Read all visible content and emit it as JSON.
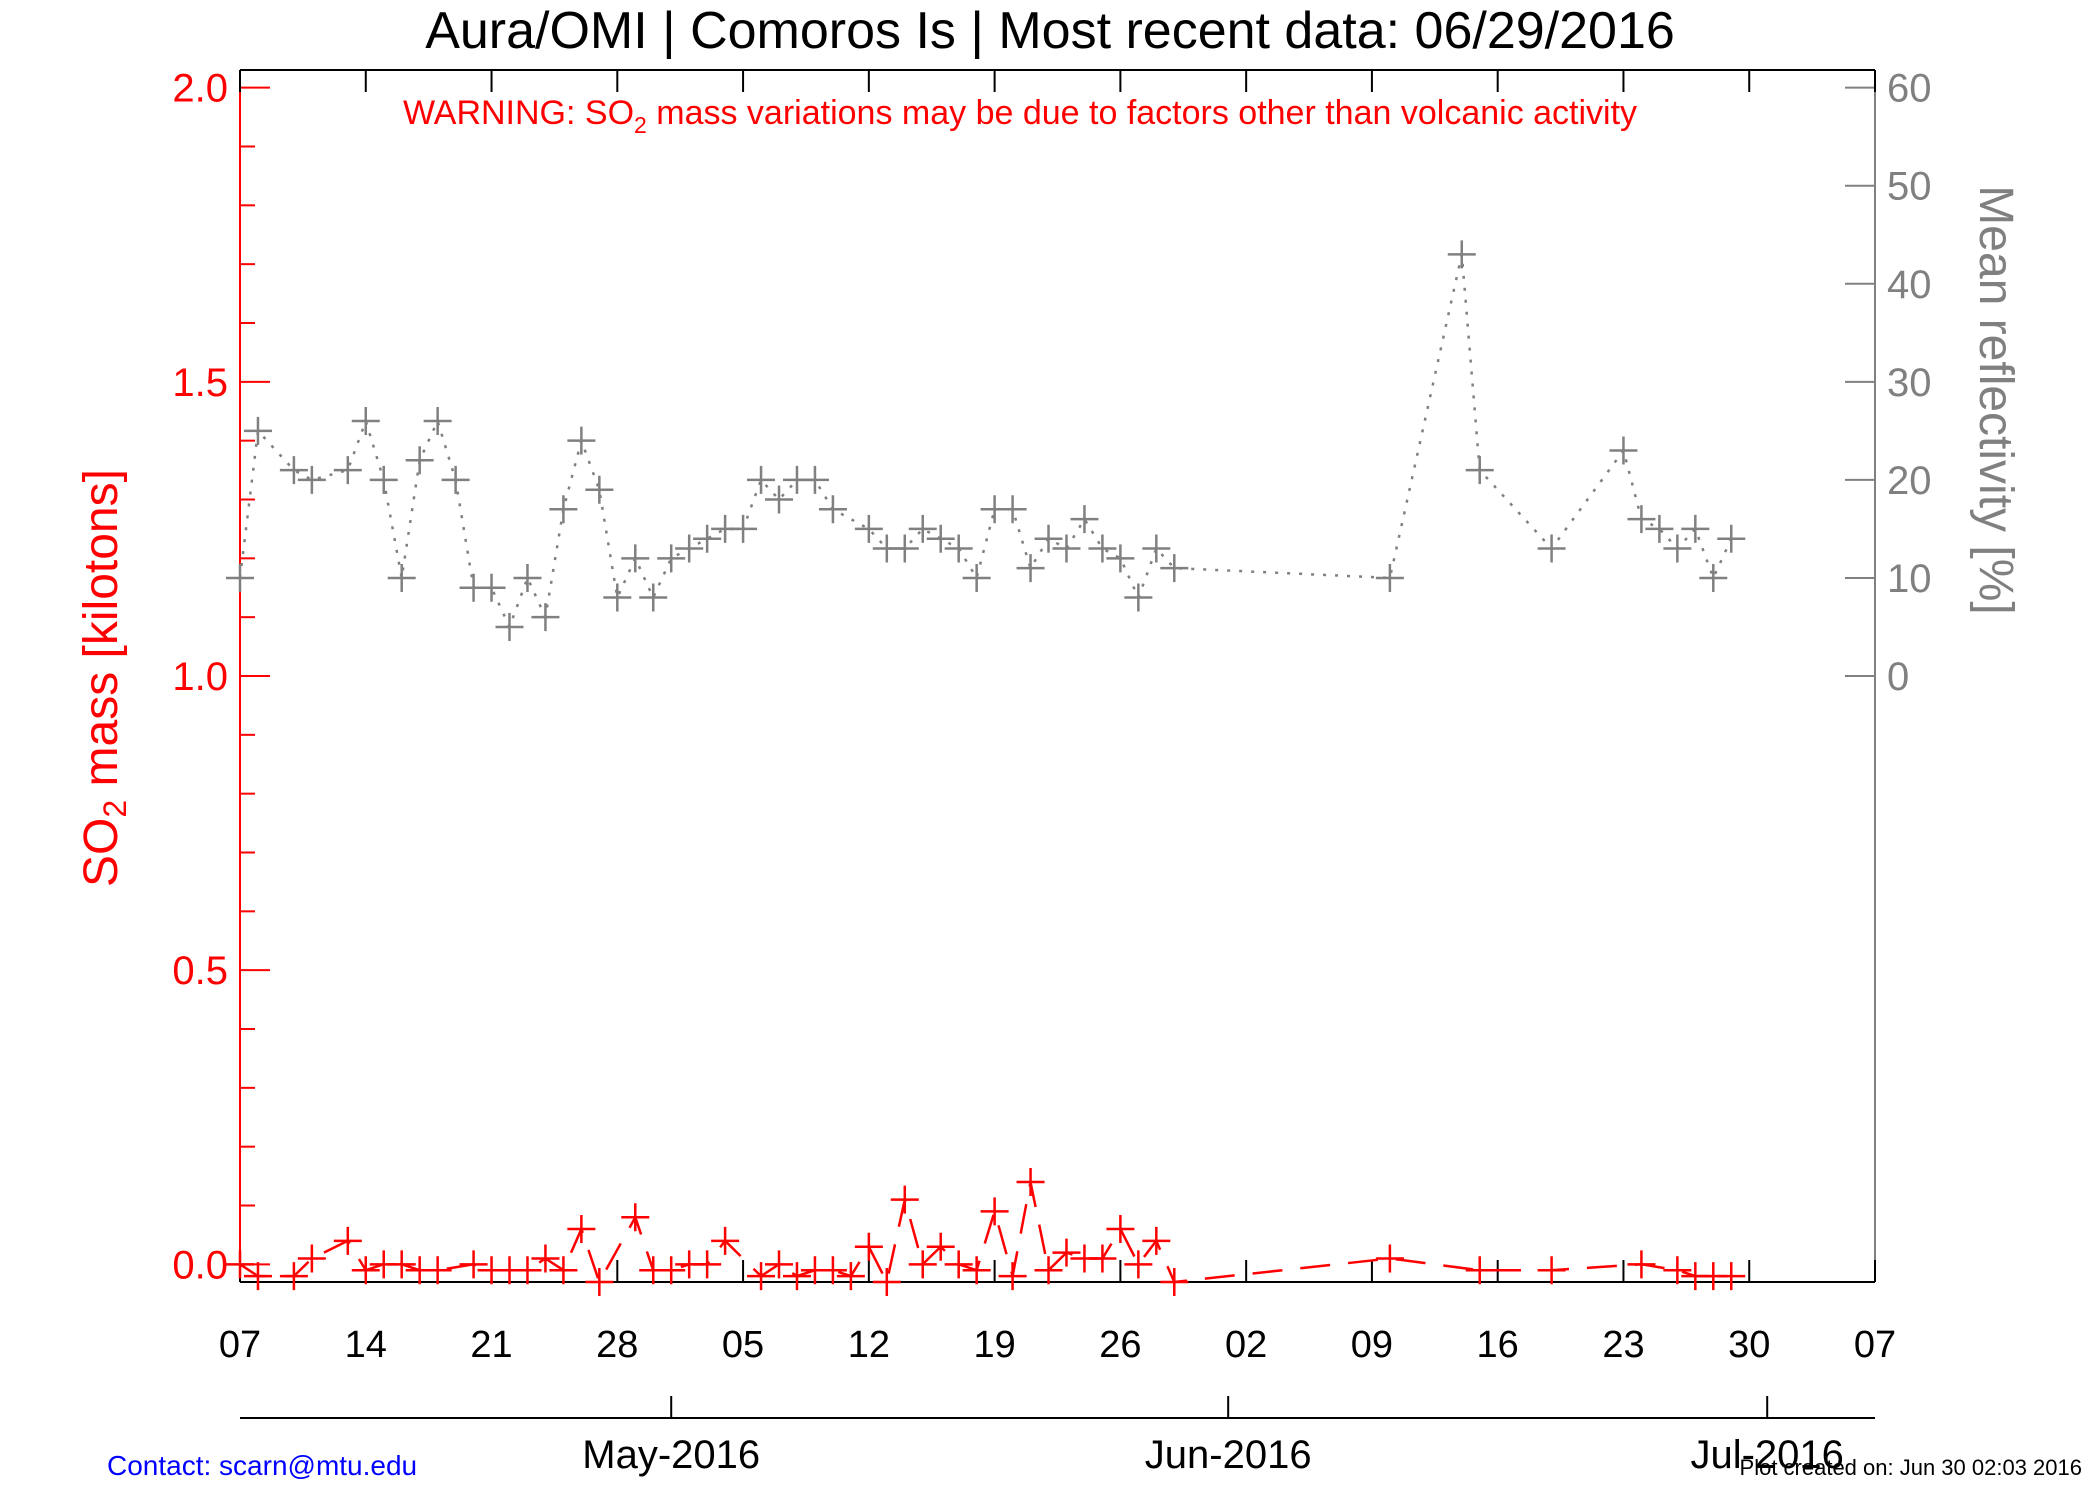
{
  "header": {
    "title": "Aura/OMI | Comoros Is | Most recent data: 06/29/2016",
    "warning_pre": "WARNING: SO",
    "warning_sub": "2",
    "warning_post": " mass variations may be due to factors other than volcanic activity"
  },
  "footer": {
    "contact": "Contact: scarn@mtu.edu",
    "created": "Plot created on: Jun 30 02:03 2016"
  },
  "chart_data": {
    "type": "line",
    "title": "Aura/OMI | Comoros Is | Most recent data: 06/29/2016",
    "x_unit": "date",
    "x_range": [
      "2016-04-07",
      "2016-07-07"
    ],
    "x_ticks": [
      "07",
      "14",
      "21",
      "28",
      "05",
      "12",
      "19",
      "26",
      "02",
      "09",
      "16",
      "23",
      "30",
      "07"
    ],
    "month_labels": [
      {
        "label": "May-2016",
        "date": "2016-05-01"
      },
      {
        "label": "Jun-2016",
        "date": "2016-06-01"
      },
      {
        "label": "Jul-2016",
        "date": "2016-07-01"
      }
    ],
    "ylabel_left": {
      "pre": "SO",
      "sub": "2",
      "post": " mass [kilotons]"
    },
    "ylabel_right": "Mean reflectivity [%]",
    "ylim_left": [
      -0.03,
      2.03
    ],
    "yticks_left": [
      "0.0",
      "0.5",
      "1.0",
      "1.5",
      "2.0"
    ],
    "yticks_right": [
      "0",
      "10",
      "20",
      "30",
      "40",
      "50",
      "60"
    ],
    "right_axis_mapping": {
      "zero_at_left_value": 1.0,
      "sixty_at_left_value": 2.0
    },
    "colors": {
      "so2": "#ff0000",
      "reflectivity": "#808080"
    },
    "series": [
      {
        "key": "so2_mass",
        "axis": "left",
        "style": "dashed",
        "x": [
          "2016-04-07",
          "2016-04-08",
          "2016-04-10",
          "2016-04-11",
          "2016-04-13",
          "2016-04-14",
          "2016-04-15",
          "2016-04-16",
          "2016-04-17",
          "2016-04-18",
          "2016-04-20",
          "2016-04-21",
          "2016-04-22",
          "2016-04-23",
          "2016-04-24",
          "2016-04-25",
          "2016-04-26",
          "2016-04-27",
          "2016-04-29",
          "2016-04-30",
          "2016-05-01",
          "2016-05-02",
          "2016-05-03",
          "2016-05-04",
          "2016-05-06",
          "2016-05-07",
          "2016-05-08",
          "2016-05-09",
          "2016-05-10",
          "2016-05-11",
          "2016-05-12",
          "2016-05-13",
          "2016-05-14",
          "2016-05-15",
          "2016-05-16",
          "2016-05-17",
          "2016-05-18",
          "2016-05-19",
          "2016-05-20",
          "2016-05-21",
          "2016-05-22",
          "2016-05-23",
          "2016-05-24",
          "2016-05-25",
          "2016-05-26",
          "2016-05-27",
          "2016-05-28",
          "2016-05-29",
          "2016-06-10",
          "2016-06-15",
          "2016-06-19",
          "2016-06-24",
          "2016-06-26",
          "2016-06-27",
          "2016-06-28",
          "2016-06-29"
        ],
        "values": [
          0.0,
          -0.02,
          -0.02,
          0.01,
          0.04,
          -0.01,
          0.0,
          0.0,
          -0.01,
          -0.01,
          0.0,
          -0.01,
          -0.01,
          -0.01,
          0.01,
          -0.01,
          0.06,
          -0.04,
          0.08,
          -0.01,
          -0.01,
          0.0,
          0.0,
          0.04,
          -0.02,
          0.0,
          -0.02,
          -0.01,
          -0.01,
          -0.02,
          0.03,
          -0.04,
          0.11,
          0.0,
          0.03,
          0.0,
          -0.01,
          0.09,
          -0.02,
          0.14,
          -0.01,
          0.02,
          0.01,
          0.01,
          0.06,
          0.0,
          0.04,
          -0.03,
          0.01,
          -0.01,
          -0.01,
          0.0,
          -0.01,
          -0.02,
          -0.02,
          -0.02
        ]
      },
      {
        "key": "mean_reflectivity",
        "axis": "right",
        "style": "dotted",
        "x": [
          "2016-04-07",
          "2016-04-08",
          "2016-04-10",
          "2016-04-11",
          "2016-04-13",
          "2016-04-14",
          "2016-04-15",
          "2016-04-16",
          "2016-04-17",
          "2016-04-18",
          "2016-04-19",
          "2016-04-20",
          "2016-04-21",
          "2016-04-22",
          "2016-04-23",
          "2016-04-24",
          "2016-04-25",
          "2016-04-26",
          "2016-04-27",
          "2016-04-28",
          "2016-04-29",
          "2016-04-30",
          "2016-05-01",
          "2016-05-02",
          "2016-05-03",
          "2016-05-04",
          "2016-05-05",
          "2016-05-06",
          "2016-05-07",
          "2016-05-08",
          "2016-05-09",
          "2016-05-10",
          "2016-05-12",
          "2016-05-13",
          "2016-05-14",
          "2016-05-15",
          "2016-05-16",
          "2016-05-17",
          "2016-05-18",
          "2016-05-19",
          "2016-05-20",
          "2016-05-21",
          "2016-05-22",
          "2016-05-23",
          "2016-05-24",
          "2016-05-25",
          "2016-05-26",
          "2016-05-27",
          "2016-05-28",
          "2016-05-29",
          "2016-06-10",
          "2016-06-14",
          "2016-06-15",
          "2016-06-19",
          "2016-06-23",
          "2016-06-24",
          "2016-06-25",
          "2016-06-26",
          "2016-06-27",
          "2016-06-28",
          "2016-06-29"
        ],
        "values": [
          10,
          25,
          21,
          20,
          21,
          26,
          20,
          10,
          22,
          26,
          20,
          9,
          9,
          5,
          10,
          6,
          17,
          24,
          19,
          8,
          12,
          8,
          12,
          13,
          14,
          15,
          15,
          20,
          18,
          20,
          20,
          17,
          15,
          13,
          13,
          15,
          14,
          13,
          10,
          17,
          17,
          11,
          14,
          13,
          16,
          13,
          12,
          8,
          13,
          11,
          10,
          43,
          21,
          13,
          23,
          16,
          15,
          13,
          15,
          10,
          14
        ]
      }
    ]
  }
}
